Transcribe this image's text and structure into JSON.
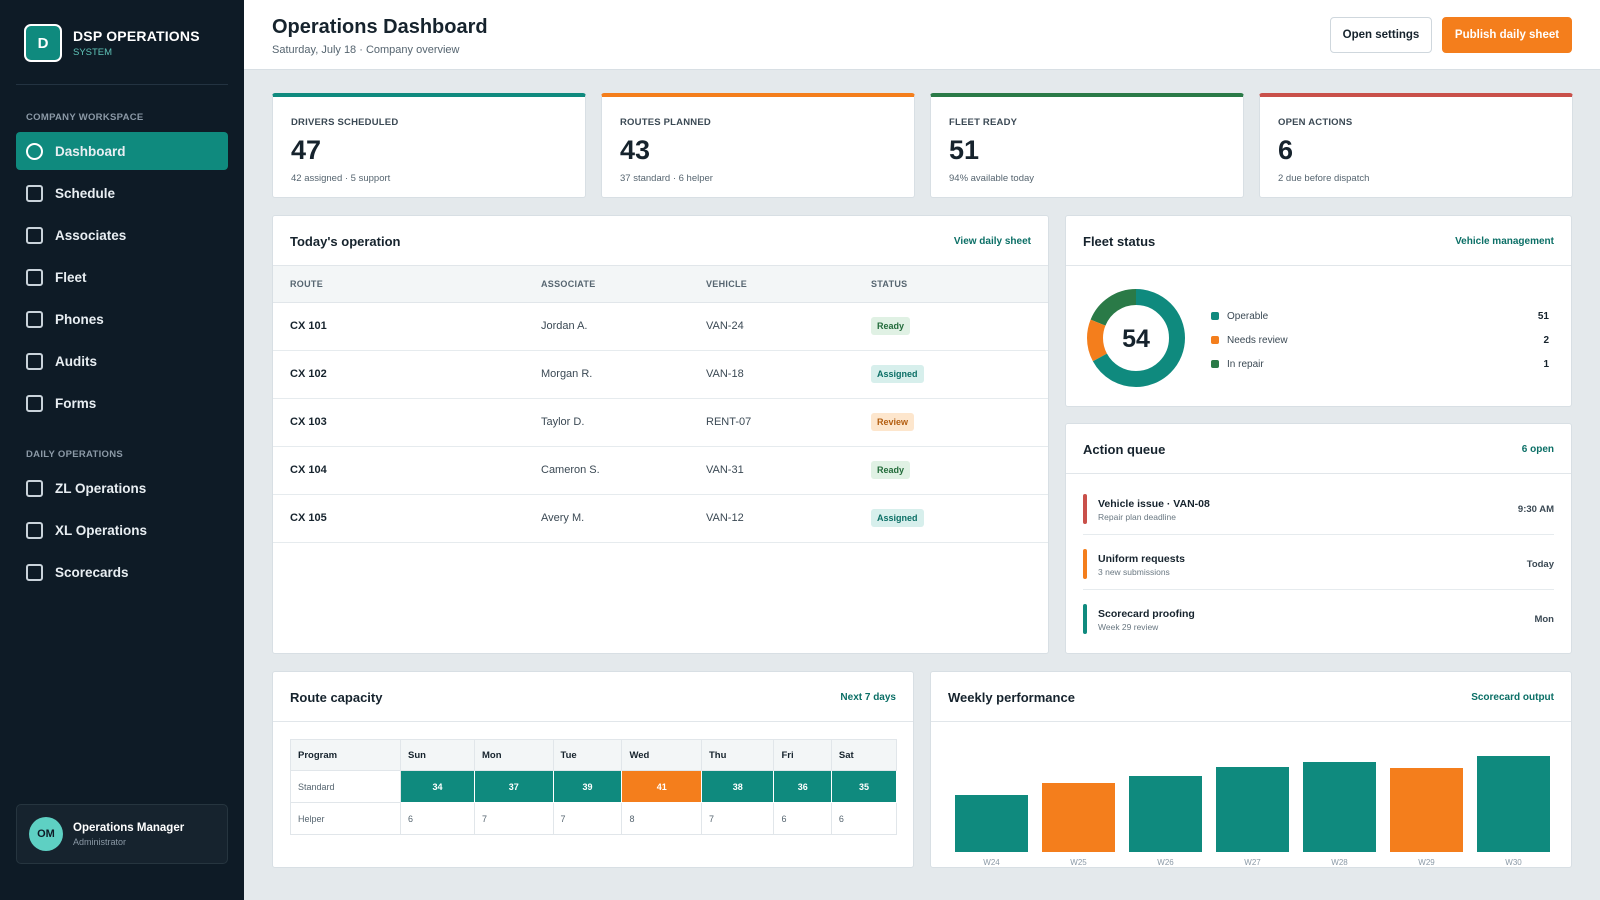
{
  "brand": {
    "logo_letter": "D",
    "name": "DSP OPERATIONS",
    "sub": "SYSTEM"
  },
  "sidebar": {
    "section1": "COMPANY WORKSPACE",
    "items1": [
      {
        "label": "Dashboard",
        "active": true
      },
      {
        "label": "Schedule"
      },
      {
        "label": "Associates"
      },
      {
        "label": "Fleet"
      },
      {
        "label": "Phones"
      },
      {
        "label": "Audits"
      },
      {
        "label": "Forms"
      }
    ],
    "section2": "DAILY OPERATIONS",
    "items2": [
      {
        "label": "ZL Operations"
      },
      {
        "label": "XL Operations"
      },
      {
        "label": "Scorecards"
      }
    ],
    "user": {
      "initials": "OM",
      "name": "Operations Manager",
      "role": "Administrator"
    }
  },
  "header": {
    "title": "Operations Dashboard",
    "subtitle": "Saturday, July 18 · Company overview",
    "settings_label": "Open settings",
    "publish_label": "Publish daily sheet"
  },
  "stats": [
    {
      "label": "DRIVERS SCHEDULED",
      "value": "47",
      "sub": "42 assigned · 5 support",
      "color": "#0f8a7e"
    },
    {
      "label": "ROUTES PLANNED",
      "value": "43",
      "sub": "37 standard · 6 helper",
      "color": "#f47e1c"
    },
    {
      "label": "FLEET READY",
      "value": "51",
      "sub": "94% available today",
      "color": "#2a7a47"
    },
    {
      "label": "OPEN ACTIONS",
      "value": "6",
      "sub": "2 due before dispatch",
      "color": "#c9504a"
    }
  ],
  "operation": {
    "title": "Today's operation",
    "link": "View daily sheet",
    "columns": [
      "ROUTE",
      "ASSOCIATE",
      "VEHICLE",
      "STATUS"
    ],
    "rows": [
      {
        "route": "CX 101",
        "associate": "Jordan A.",
        "vehicle": "VAN-24",
        "status": "Ready",
        "kind": "ready"
      },
      {
        "route": "CX 102",
        "associate": "Morgan R.",
        "vehicle": "VAN-18",
        "status": "Assigned",
        "kind": "assigned"
      },
      {
        "route": "CX 103",
        "associate": "Taylor D.",
        "vehicle": "RENT-07",
        "status": "Review",
        "kind": "review"
      },
      {
        "route": "CX 104",
        "associate": "Cameron S.",
        "vehicle": "VAN-31",
        "status": "Ready",
        "kind": "ready"
      },
      {
        "route": "CX 105",
        "associate": "Avery M.",
        "vehicle": "VAN-12",
        "status": "Assigned",
        "kind": "assigned"
      }
    ]
  },
  "fleet": {
    "title": "Fleet status",
    "link": "Vehicle management",
    "total": "54",
    "segments": [
      {
        "name": "Operable",
        "value": 51,
        "color": "#0f8a7e"
      },
      {
        "name": "Needs review",
        "value": 2,
        "color": "#f47e1c"
      },
      {
        "name": "In repair",
        "value": 1,
        "color": "#2a7a47"
      }
    ]
  },
  "queue": {
    "title": "Action queue",
    "link": "6 open",
    "items": [
      {
        "title": "Vehicle issue · VAN-08",
        "sub": "Repair plan deadline",
        "time": "9:30 AM",
        "color": "#c9504a"
      },
      {
        "title": "Uniform requests",
        "sub": "3 new submissions",
        "time": "Today",
        "color": "#f47e1c"
      },
      {
        "title": "Scorecard proofing",
        "sub": "Week 29 review",
        "time": "Mon",
        "color": "#0f8a7e"
      }
    ]
  },
  "capacity": {
    "title": "Route capacity",
    "link": "Next 7 days",
    "header": [
      "Program",
      "Sun",
      "Mon",
      "Tue",
      "Wed",
      "Thu",
      "Fri",
      "Sat"
    ],
    "rows": [
      {
        "program": "Standard",
        "values": [
          "34",
          "37",
          "39",
          "41",
          "38",
          "36",
          "35"
        ],
        "filled": true,
        "peak_index": 3
      },
      {
        "program": "Helper",
        "values": [
          "6",
          "7",
          "7",
          "8",
          "7",
          "6",
          "6"
        ],
        "filled": false
      }
    ]
  },
  "weekly": {
    "title": "Weekly performance",
    "link": "Scorecard output",
    "chart_data": {
      "type": "bar",
      "categories": [
        "W24",
        "W25",
        "W26",
        "W27",
        "W28",
        "W29",
        "W30"
      ],
      "values": [
        57,
        69,
        76,
        85,
        90,
        84,
        96
      ],
      "ylim": [
        0,
        100
      ],
      "colors": [
        "#0f8a7e",
        "#f47e1c",
        "#0f8a7e",
        "#0f8a7e",
        "#0f8a7e",
        "#f47e1c",
        "#0f8a7e"
      ],
      "grid": false,
      "legend": "none"
    }
  }
}
